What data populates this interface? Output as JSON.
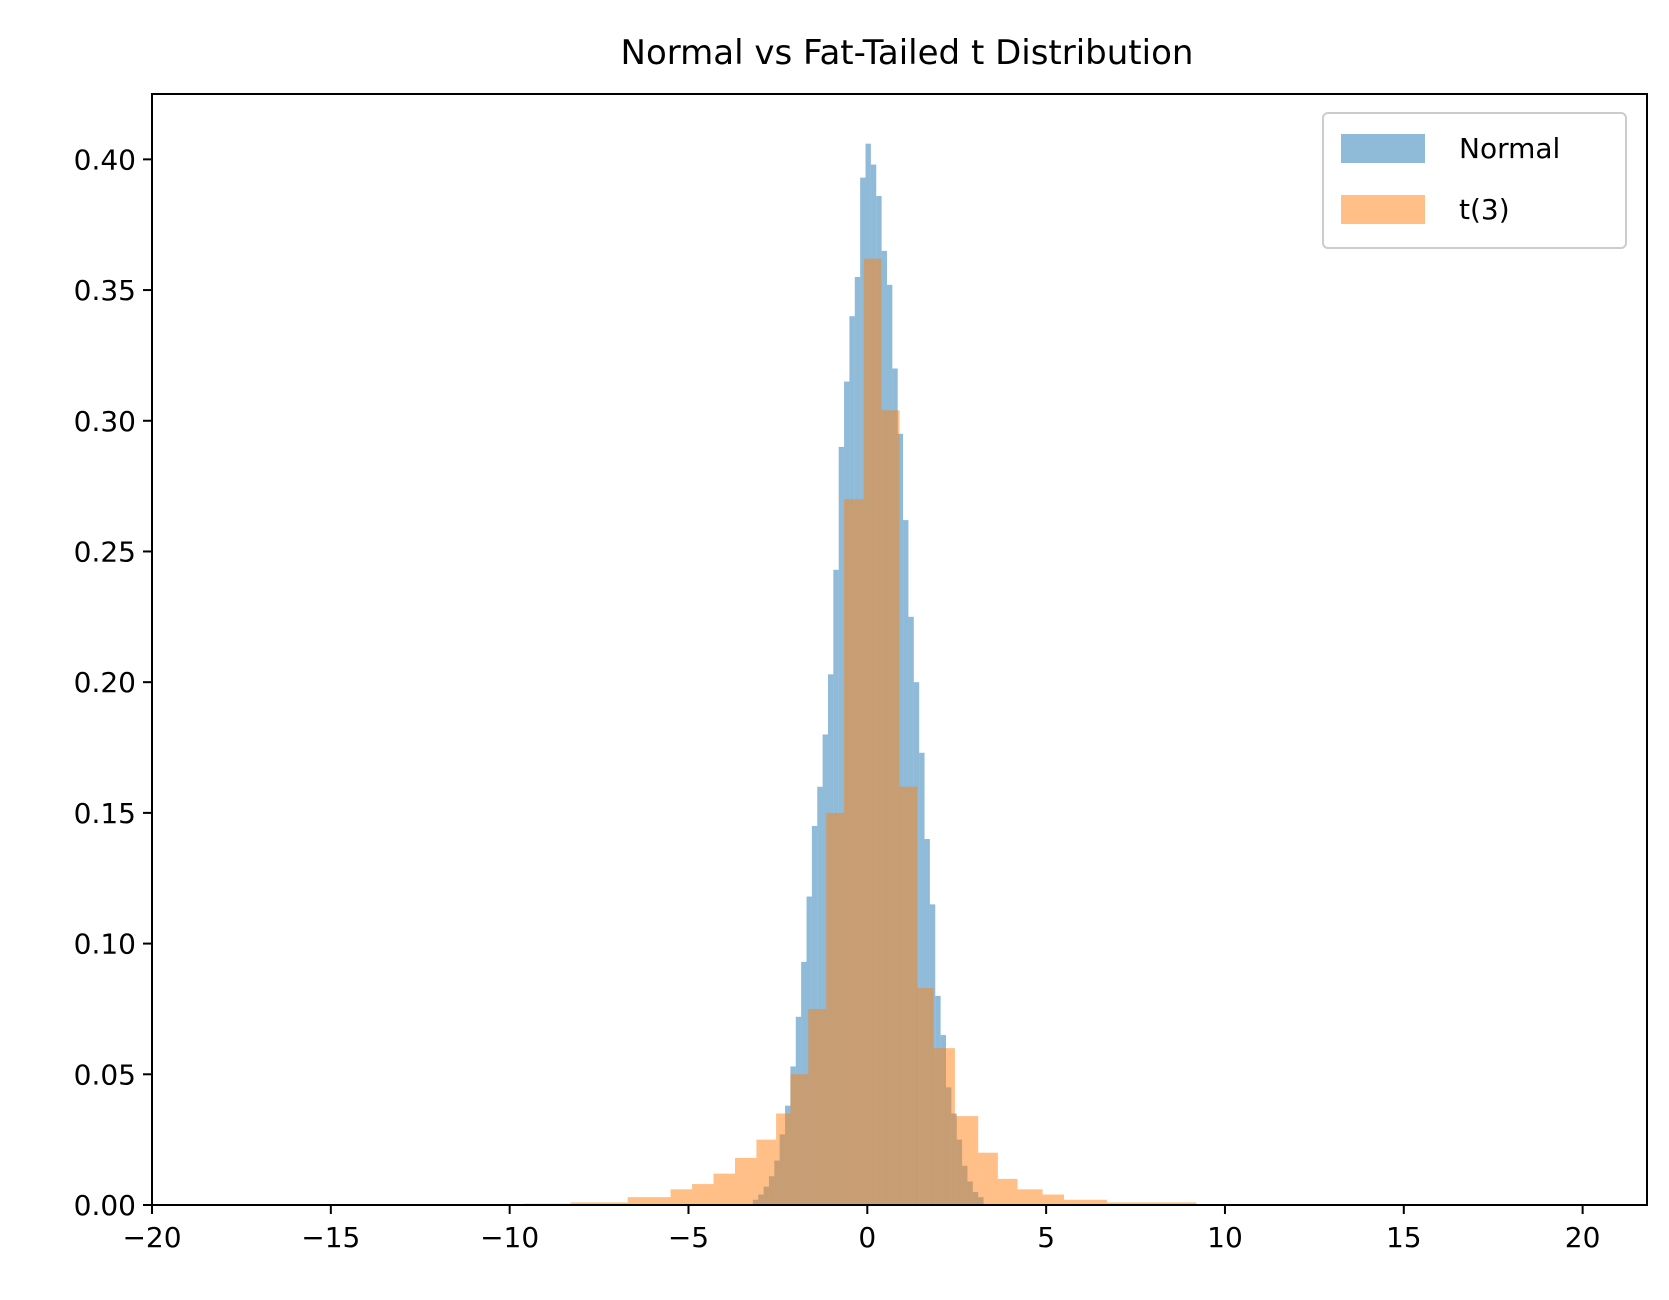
{
  "chart_data": {
    "type": "bar",
    "title": "Normal vs Fat-Tailed t Distribution",
    "xlabel": "",
    "ylabel": "",
    "xlim": [
      -20,
      21.8
    ],
    "ylim": [
      0,
      0.425
    ],
    "x_ticks": [
      -20,
      -15,
      -10,
      -5,
      0,
      5,
      10,
      15,
      20
    ],
    "x_tick_labels": [
      "−20",
      "−15",
      "−10",
      "−5",
      "0",
      "5",
      "10",
      "15",
      "20"
    ],
    "y_ticks": [
      0,
      0.05,
      0.1,
      0.15,
      0.2,
      0.25,
      0.3,
      0.35,
      0.4
    ],
    "y_tick_labels": [
      "0.00",
      "0.05",
      "0.10",
      "0.15",
      "0.20",
      "0.25",
      "0.30",
      "0.35",
      "0.40"
    ],
    "grid": false,
    "legend_position": "top-right",
    "series": [
      {
        "name": "Normal",
        "color": "#1f77b4",
        "alpha": 0.5,
        "bins": [
          [
            -3.2,
            -3.05,
            0.002
          ],
          [
            -3.05,
            -2.9,
            0.004
          ],
          [
            -2.9,
            -2.75,
            0.007
          ],
          [
            -2.75,
            -2.6,
            0.011
          ],
          [
            -2.6,
            -2.45,
            0.017
          ],
          [
            -2.45,
            -2.3,
            0.027
          ],
          [
            -2.3,
            -2.15,
            0.038
          ],
          [
            -2.15,
            -2.0,
            0.053
          ],
          [
            -2.0,
            -1.85,
            0.072
          ],
          [
            -1.85,
            -1.7,
            0.093
          ],
          [
            -1.7,
            -1.55,
            0.118
          ],
          [
            -1.55,
            -1.4,
            0.145
          ],
          [
            -1.4,
            -1.25,
            0.16
          ],
          [
            -1.25,
            -1.1,
            0.18
          ],
          [
            -1.1,
            -0.95,
            0.203
          ],
          [
            -0.95,
            -0.8,
            0.243
          ],
          [
            -0.8,
            -0.65,
            0.29
          ],
          [
            -0.65,
            -0.5,
            0.315
          ],
          [
            -0.5,
            -0.35,
            0.34
          ],
          [
            -0.35,
            -0.2,
            0.355
          ],
          [
            -0.2,
            -0.05,
            0.393
          ],
          [
            -0.05,
            0.1,
            0.406
          ],
          [
            0.1,
            0.25,
            0.398
          ],
          [
            0.25,
            0.4,
            0.386
          ],
          [
            0.4,
            0.55,
            0.365
          ],
          [
            0.55,
            0.7,
            0.352
          ],
          [
            0.7,
            0.85,
            0.32
          ],
          [
            0.85,
            1.0,
            0.295
          ],
          [
            1.0,
            1.15,
            0.262
          ],
          [
            1.15,
            1.3,
            0.225
          ],
          [
            1.3,
            1.45,
            0.2
          ],
          [
            1.45,
            1.6,
            0.173
          ],
          [
            1.6,
            1.75,
            0.14
          ],
          [
            1.75,
            1.9,
            0.115
          ],
          [
            1.9,
            2.05,
            0.08
          ],
          [
            2.05,
            2.2,
            0.065
          ],
          [
            2.2,
            2.35,
            0.045
          ],
          [
            2.35,
            2.5,
            0.035
          ],
          [
            2.5,
            2.65,
            0.025
          ],
          [
            2.65,
            2.8,
            0.015
          ],
          [
            2.8,
            2.95,
            0.009
          ],
          [
            2.95,
            3.1,
            0.005
          ],
          [
            3.1,
            3.25,
            0.003
          ]
        ]
      },
      {
        "name": "t(3)",
        "color": "#ff7f0e",
        "alpha": 0.5,
        "bins": [
          [
            -9.6,
            -8.3,
            0.0005
          ],
          [
            -8.3,
            -6.7,
            0.001
          ],
          [
            -6.7,
            -5.5,
            0.003
          ],
          [
            -5.5,
            -4.9,
            0.006
          ],
          [
            -4.9,
            -4.3,
            0.008
          ],
          [
            -4.3,
            -3.7,
            0.012
          ],
          [
            -3.7,
            -3.1,
            0.018
          ],
          [
            -3.1,
            -2.55,
            0.025
          ],
          [
            -2.55,
            -2.15,
            0.035
          ],
          [
            -2.15,
            -1.65,
            0.05
          ],
          [
            -1.65,
            -1.15,
            0.075
          ],
          [
            -1.15,
            -0.65,
            0.15
          ],
          [
            -0.65,
            -0.1,
            0.27
          ],
          [
            -0.1,
            0.4,
            0.362
          ],
          [
            0.4,
            0.9,
            0.304
          ],
          [
            0.9,
            1.4,
            0.16
          ],
          [
            1.4,
            1.85,
            0.083
          ],
          [
            1.85,
            2.45,
            0.06
          ],
          [
            2.45,
            3.1,
            0.034
          ],
          [
            3.1,
            3.65,
            0.02
          ],
          [
            3.65,
            4.2,
            0.01
          ],
          [
            4.2,
            4.9,
            0.006
          ],
          [
            4.9,
            5.5,
            0.004
          ],
          [
            5.5,
            6.7,
            0.002
          ],
          [
            6.7,
            9.2,
            0.001
          ]
        ]
      }
    ]
  }
}
